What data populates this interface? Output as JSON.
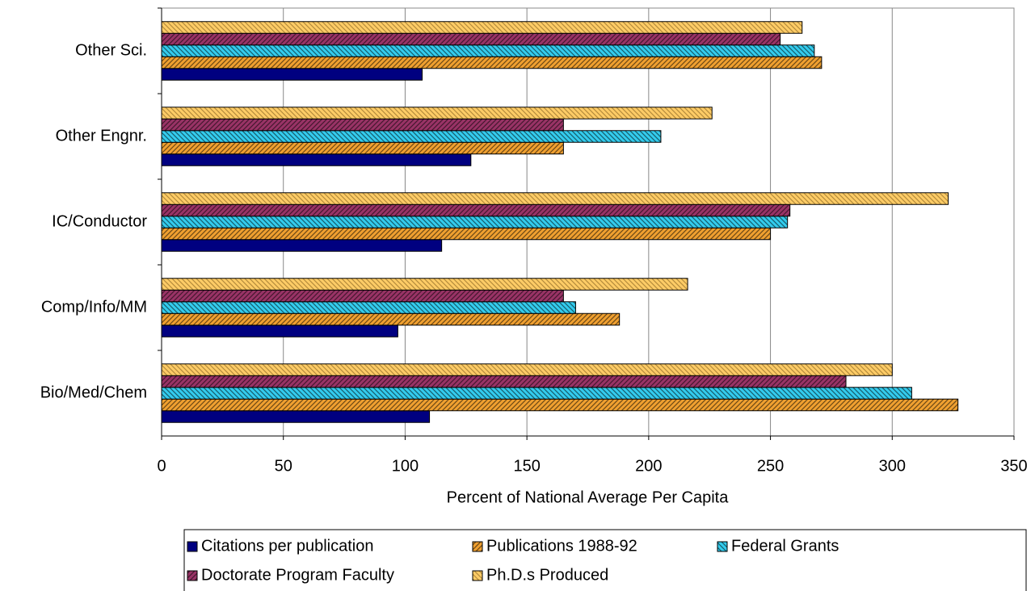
{
  "chart_data": {
    "type": "bar",
    "orientation": "horizontal",
    "x_label": "Percent of National Average Per Capita",
    "categories": [
      "Bio/Med/Chem",
      "Comp/Info/MM",
      "IC/Conductor",
      "Other Engnr.",
      "Other Sci."
    ],
    "series": [
      {
        "name": "Citations per publication",
        "color": "#000080",
        "values": [
          110,
          97,
          115,
          127,
          107
        ]
      },
      {
        "name": "Publications 1988-92",
        "color": "#f0a030",
        "values": [
          327,
          188,
          250,
          165,
          271
        ]
      },
      {
        "name": "Federal Grants",
        "color": "#33ccee",
        "values": [
          308,
          170,
          257,
          205,
          268
        ]
      },
      {
        "name": "Doctorate Program Faculty",
        "color": "#993366",
        "values": [
          281,
          165,
          258,
          165,
          254
        ]
      },
      {
        "name": "Ph.D.s Produced",
        "color": "#ffcc66",
        "values": [
          300,
          216,
          323,
          226,
          263
        ]
      }
    ],
    "xlim": [
      0,
      350
    ],
    "xticks": [
      0,
      50,
      100,
      150,
      200,
      250,
      300,
      350
    ],
    "grid": true
  }
}
